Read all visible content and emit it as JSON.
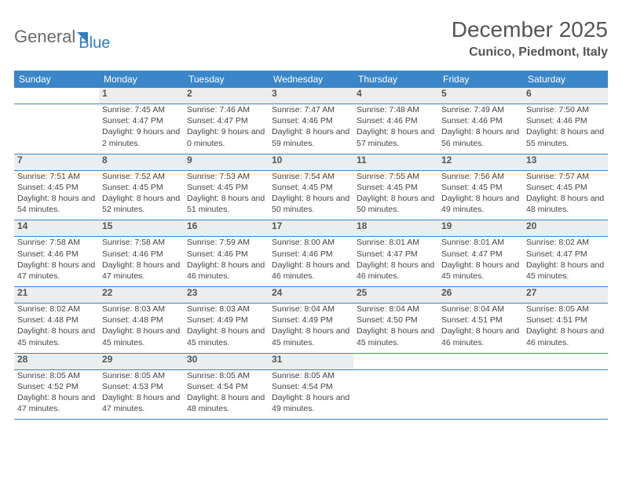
{
  "brand": {
    "word1": "General",
    "word2": "Blue"
  },
  "title": "December 2025",
  "location": "Cunico, Piedmont, Italy",
  "days": [
    "Sunday",
    "Monday",
    "Tuesday",
    "Wednesday",
    "Thursday",
    "Friday",
    "Saturday"
  ],
  "colors": {
    "header_bg": "#3a86c8",
    "header_text": "#ffffff",
    "daynum_bg": "#ecedee",
    "text": "#444444",
    "rule": "#3a86c8"
  },
  "fonts": {
    "month_title_size": 28,
    "location_size": 16,
    "dayheader_size": 12,
    "daynum_size": 12,
    "body_size": 10.5
  },
  "weeks": [
    [
      null,
      {
        "n": "1",
        "sr": "7:45 AM",
        "ss": "4:47 PM",
        "dl": "9 hours and 2 minutes."
      },
      {
        "n": "2",
        "sr": "7:46 AM",
        "ss": "4:47 PM",
        "dl": "9 hours and 0 minutes."
      },
      {
        "n": "3",
        "sr": "7:47 AM",
        "ss": "4:46 PM",
        "dl": "8 hours and 59 minutes."
      },
      {
        "n": "4",
        "sr": "7:48 AM",
        "ss": "4:46 PM",
        "dl": "8 hours and 57 minutes."
      },
      {
        "n": "5",
        "sr": "7:49 AM",
        "ss": "4:46 PM",
        "dl": "8 hours and 56 minutes."
      },
      {
        "n": "6",
        "sr": "7:50 AM",
        "ss": "4:46 PM",
        "dl": "8 hours and 55 minutes."
      }
    ],
    [
      {
        "n": "7",
        "sr": "7:51 AM",
        "ss": "4:45 PM",
        "dl": "8 hours and 54 minutes."
      },
      {
        "n": "8",
        "sr": "7:52 AM",
        "ss": "4:45 PM",
        "dl": "8 hours and 52 minutes."
      },
      {
        "n": "9",
        "sr": "7:53 AM",
        "ss": "4:45 PM",
        "dl": "8 hours and 51 minutes."
      },
      {
        "n": "10",
        "sr": "7:54 AM",
        "ss": "4:45 PM",
        "dl": "8 hours and 50 minutes."
      },
      {
        "n": "11",
        "sr": "7:55 AM",
        "ss": "4:45 PM",
        "dl": "8 hours and 50 minutes."
      },
      {
        "n": "12",
        "sr": "7:56 AM",
        "ss": "4:45 PM",
        "dl": "8 hours and 49 minutes."
      },
      {
        "n": "13",
        "sr": "7:57 AM",
        "ss": "4:45 PM",
        "dl": "8 hours and 48 minutes."
      }
    ],
    [
      {
        "n": "14",
        "sr": "7:58 AM",
        "ss": "4:46 PM",
        "dl": "8 hours and 47 minutes."
      },
      {
        "n": "15",
        "sr": "7:58 AM",
        "ss": "4:46 PM",
        "dl": "8 hours and 47 minutes."
      },
      {
        "n": "16",
        "sr": "7:59 AM",
        "ss": "4:46 PM",
        "dl": "8 hours and 46 minutes."
      },
      {
        "n": "17",
        "sr": "8:00 AM",
        "ss": "4:46 PM",
        "dl": "8 hours and 46 minutes."
      },
      {
        "n": "18",
        "sr": "8:01 AM",
        "ss": "4:47 PM",
        "dl": "8 hours and 46 minutes."
      },
      {
        "n": "19",
        "sr": "8:01 AM",
        "ss": "4:47 PM",
        "dl": "8 hours and 45 minutes."
      },
      {
        "n": "20",
        "sr": "8:02 AM",
        "ss": "4:47 PM",
        "dl": "8 hours and 45 minutes."
      }
    ],
    [
      {
        "n": "21",
        "sr": "8:02 AM",
        "ss": "4:48 PM",
        "dl": "8 hours and 45 minutes."
      },
      {
        "n": "22",
        "sr": "8:03 AM",
        "ss": "4:48 PM",
        "dl": "8 hours and 45 minutes."
      },
      {
        "n": "23",
        "sr": "8:03 AM",
        "ss": "4:49 PM",
        "dl": "8 hours and 45 minutes."
      },
      {
        "n": "24",
        "sr": "8:04 AM",
        "ss": "4:49 PM",
        "dl": "8 hours and 45 minutes."
      },
      {
        "n": "25",
        "sr": "8:04 AM",
        "ss": "4:50 PM",
        "dl": "8 hours and 45 minutes."
      },
      {
        "n": "26",
        "sr": "8:04 AM",
        "ss": "4:51 PM",
        "dl": "8 hours and 46 minutes."
      },
      {
        "n": "27",
        "sr": "8:05 AM",
        "ss": "4:51 PM",
        "dl": "8 hours and 46 minutes."
      }
    ],
    [
      {
        "n": "28",
        "sr": "8:05 AM",
        "ss": "4:52 PM",
        "dl": "8 hours and 47 minutes."
      },
      {
        "n": "29",
        "sr": "8:05 AM",
        "ss": "4:53 PM",
        "dl": "8 hours and 47 minutes."
      },
      {
        "n": "30",
        "sr": "8:05 AM",
        "ss": "4:54 PM",
        "dl": "8 hours and 48 minutes."
      },
      {
        "n": "31",
        "sr": "8:05 AM",
        "ss": "4:54 PM",
        "dl": "8 hours and 49 minutes."
      },
      null,
      null,
      null
    ]
  ],
  "labels": {
    "sunrise": "Sunrise:",
    "sunset": "Sunset:",
    "daylight": "Daylight:"
  }
}
